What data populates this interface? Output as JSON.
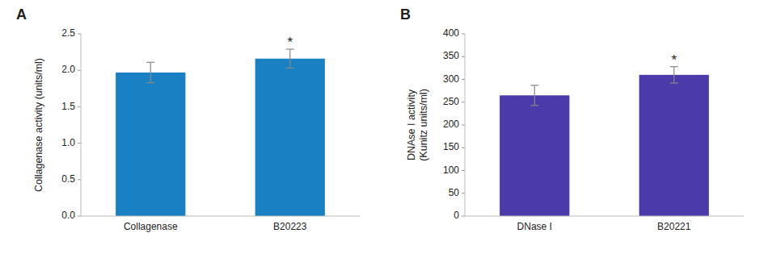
{
  "chart_data": [
    {
      "type": "bar",
      "title": "A",
      "categories": [
        "Collagenase",
        "B20223"
      ],
      "values": [
        1.97,
        2.16
      ],
      "errors": [
        0.14,
        0.13
      ],
      "color": "#1a80c4",
      "ylabel": "Collagenase activity (units/ml)",
      "ylim": [
        0,
        2.5
      ],
      "yticks": [
        {
          "value": 0.0,
          "label": "0.0"
        },
        0.5,
        {
          "value": 1.0,
          "label": "1.0"
        },
        1.5,
        {
          "value": 2.0,
          "label": "2.0"
        },
        2.5
      ],
      "annotations": [
        {
          "text": "*",
          "category": "B20223"
        }
      ],
      "grid": false
    },
    {
      "type": "bar",
      "title": "B",
      "categories": [
        "DNase I",
        "B20221"
      ],
      "values": [
        265,
        310
      ],
      "errors": [
        22,
        18
      ],
      "color": "#4a3aaa",
      "ylabel": "DNAse I activity\n(Kunitz units/ml)",
      "ylim": [
        0,
        400
      ],
      "yticks": [
        0,
        50,
        100,
        150,
        200,
        250,
        300,
        350,
        400
      ],
      "annotations": [
        {
          "text": "*",
          "category": "B20221"
        }
      ],
      "grid": false
    }
  ]
}
